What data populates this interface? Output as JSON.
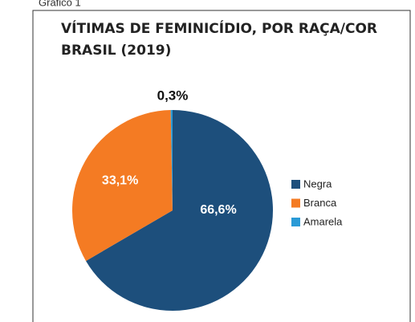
{
  "chart_data": {
    "type": "pie",
    "caption": "Gráfico 1",
    "title": [
      "VÍTIMAS DE FEMINICÍDIO, POR RAÇA/COR",
      "BRASIL (2019)"
    ],
    "categories": [
      "Negra",
      "Branca",
      "Amarela"
    ],
    "values": [
      66.6,
      33.1,
      0.3
    ],
    "value_labels": [
      "66,6%",
      "33,1%",
      "0,3%"
    ],
    "colors": [
      "#1d4f7c",
      "#f47b23",
      "#2a9ad6"
    ],
    "legend": "right"
  }
}
